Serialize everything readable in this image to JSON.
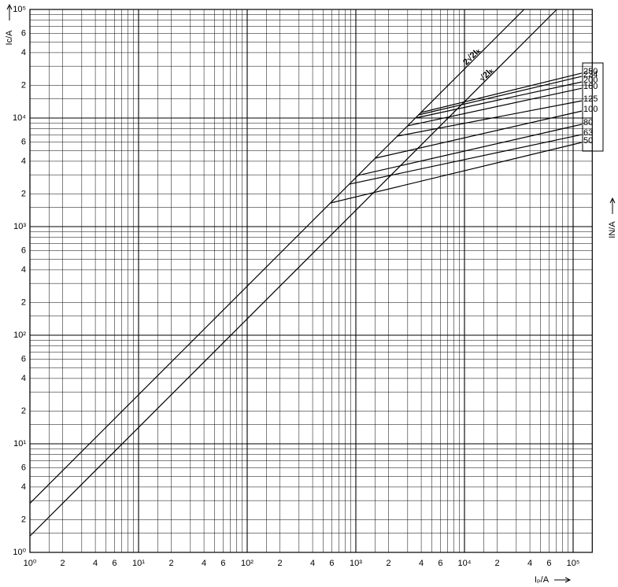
{
  "chart_data": {
    "type": "line",
    "log_scale": true,
    "grid": true,
    "y_label": "Ic/A",
    "x_label": "Iₚ/A",
    "y2_label": "IN/A",
    "xlim": [
      1,
      150000
    ],
    "ylim": [
      1,
      100000
    ],
    "xticks": [
      {
        "value": 1,
        "label": "10⁰"
      },
      2,
      4,
      6,
      {
        "value": 10,
        "label": "10¹"
      },
      {
        "value": 20,
        "label": "2"
      },
      {
        "value": 40,
        "label": "4"
      },
      {
        "value": 60,
        "label": "6"
      },
      {
        "value": 100,
        "label": "10²"
      },
      {
        "value": 200,
        "label": "2"
      },
      {
        "value": 400,
        "label": "4"
      },
      {
        "value": 600,
        "label": "6"
      },
      {
        "value": 1000,
        "label": "10³"
      },
      {
        "value": 2000,
        "label": "2"
      },
      {
        "value": 4000,
        "label": "4"
      },
      {
        "value": 6000,
        "label": "6"
      },
      {
        "value": 10000,
        "label": "10⁴"
      },
      {
        "value": 20000,
        "label": "2"
      },
      {
        "value": 40000,
        "label": "4"
      },
      {
        "value": 60000,
        "label": "6"
      },
      {
        "value": 100000,
        "label": "10⁵"
      }
    ],
    "yticks": [
      {
        "value": 1,
        "label": "10⁰"
      },
      2,
      4,
      6,
      {
        "value": 10,
        "label": "10¹"
      },
      {
        "value": 20,
        "label": "2"
      },
      {
        "value": 40,
        "label": "4"
      },
      {
        "value": 60,
        "label": "6"
      },
      {
        "value": 100,
        "label": "10²"
      },
      {
        "value": 200,
        "label": "2"
      },
      {
        "value": 400,
        "label": "4"
      },
      {
        "value": 600,
        "label": "6"
      },
      {
        "value": 1000,
        "label": "10³"
      },
      {
        "value": 2000,
        "label": "2"
      },
      {
        "value": 4000,
        "label": "4"
      },
      {
        "value": 6000,
        "label": "6"
      },
      {
        "value": 10000,
        "label": "10⁴"
      },
      {
        "value": 20000,
        "label": "2"
      },
      {
        "value": 40000,
        "label": "4"
      },
      {
        "value": 60000,
        "label": "6"
      },
      {
        "value": 100000,
        "label": "10⁵"
      }
    ],
    "minor_grid": [
      1.5,
      3,
      5,
      7,
      8,
      9
    ],
    "series": [
      {
        "name": "2√2Iₖ",
        "color": "#000000",
        "x": [
          1,
          35355
        ],
        "values": [
          2.828,
          100000
        ]
      },
      {
        "name": "√2Iₖ",
        "color": "#000000",
        "x": [
          1,
          70711
        ],
        "values": [
          1.414,
          100000
        ]
      },
      {
        "name": "250",
        "color": "#000000",
        "x": [
          3975,
          120000
        ],
        "values": [
          11240,
          25900
        ]
      },
      {
        "name": "224",
        "color": "#000000",
        "x": [
          3780,
          120000
        ],
        "values": [
          10690,
          24200
        ]
      },
      {
        "name": "200",
        "color": "#000000",
        "x": [
          3536,
          120000
        ],
        "values": [
          10000,
          21500
        ]
      },
      {
        "name": "160",
        "color": "#000000",
        "x": [
          2995,
          120000
        ],
        "values": [
          8470,
          18800
        ]
      },
      {
        "name": "125",
        "color": "#000000",
        "x": [
          2408,
          120000
        ],
        "values": [
          6810,
          14400
        ]
      },
      {
        "name": "100",
        "color": "#000000",
        "x": [
          1510,
          120000
        ],
        "values": [
          4270,
          11600
        ]
      },
      {
        "name": "80",
        "color": "#000000",
        "x": [
          1047,
          120000
        ],
        "values": [
          2960,
          8750
        ]
      },
      {
        "name": "63",
        "color": "#000000",
        "x": [
          870,
          120000
        ],
        "values": [
          2460,
          7040
        ]
      },
      {
        "name": "50",
        "color": "#000000",
        "x": [
          583,
          120000
        ],
        "values": [
          1650,
          5960
        ]
      }
    ]
  }
}
